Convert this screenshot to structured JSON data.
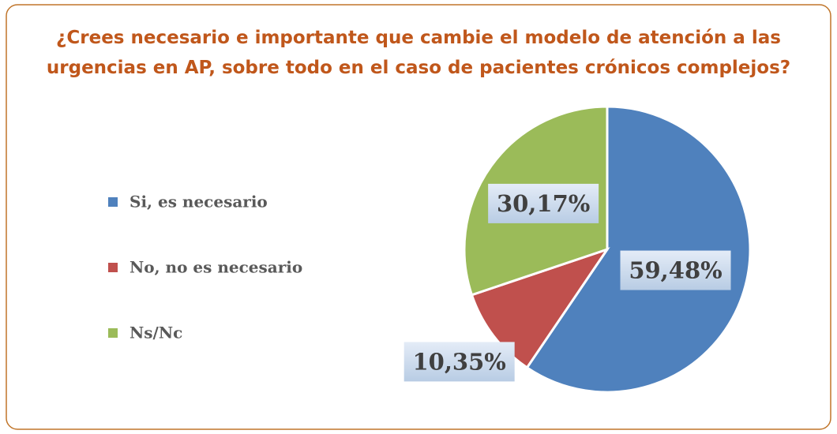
{
  "chart_data": {
    "type": "pie",
    "title": [
      "¿Crees necesario e importante que cambie el modelo de atención a las",
      "urgencias en AP, sobre todo en el caso de pacientes crónicos complejos?"
    ],
    "categories": [
      "Si, es necesario",
      "No, no es necesario",
      "Ns/Nc"
    ],
    "values": [
      59.48,
      10.35,
      30.17
    ],
    "value_labels": [
      "59,48%",
      "10,35%",
      "30,17%"
    ],
    "colors": [
      "#4f81bd",
      "#c0504d",
      "#9bbb59"
    ],
    "legend": "left"
  }
}
